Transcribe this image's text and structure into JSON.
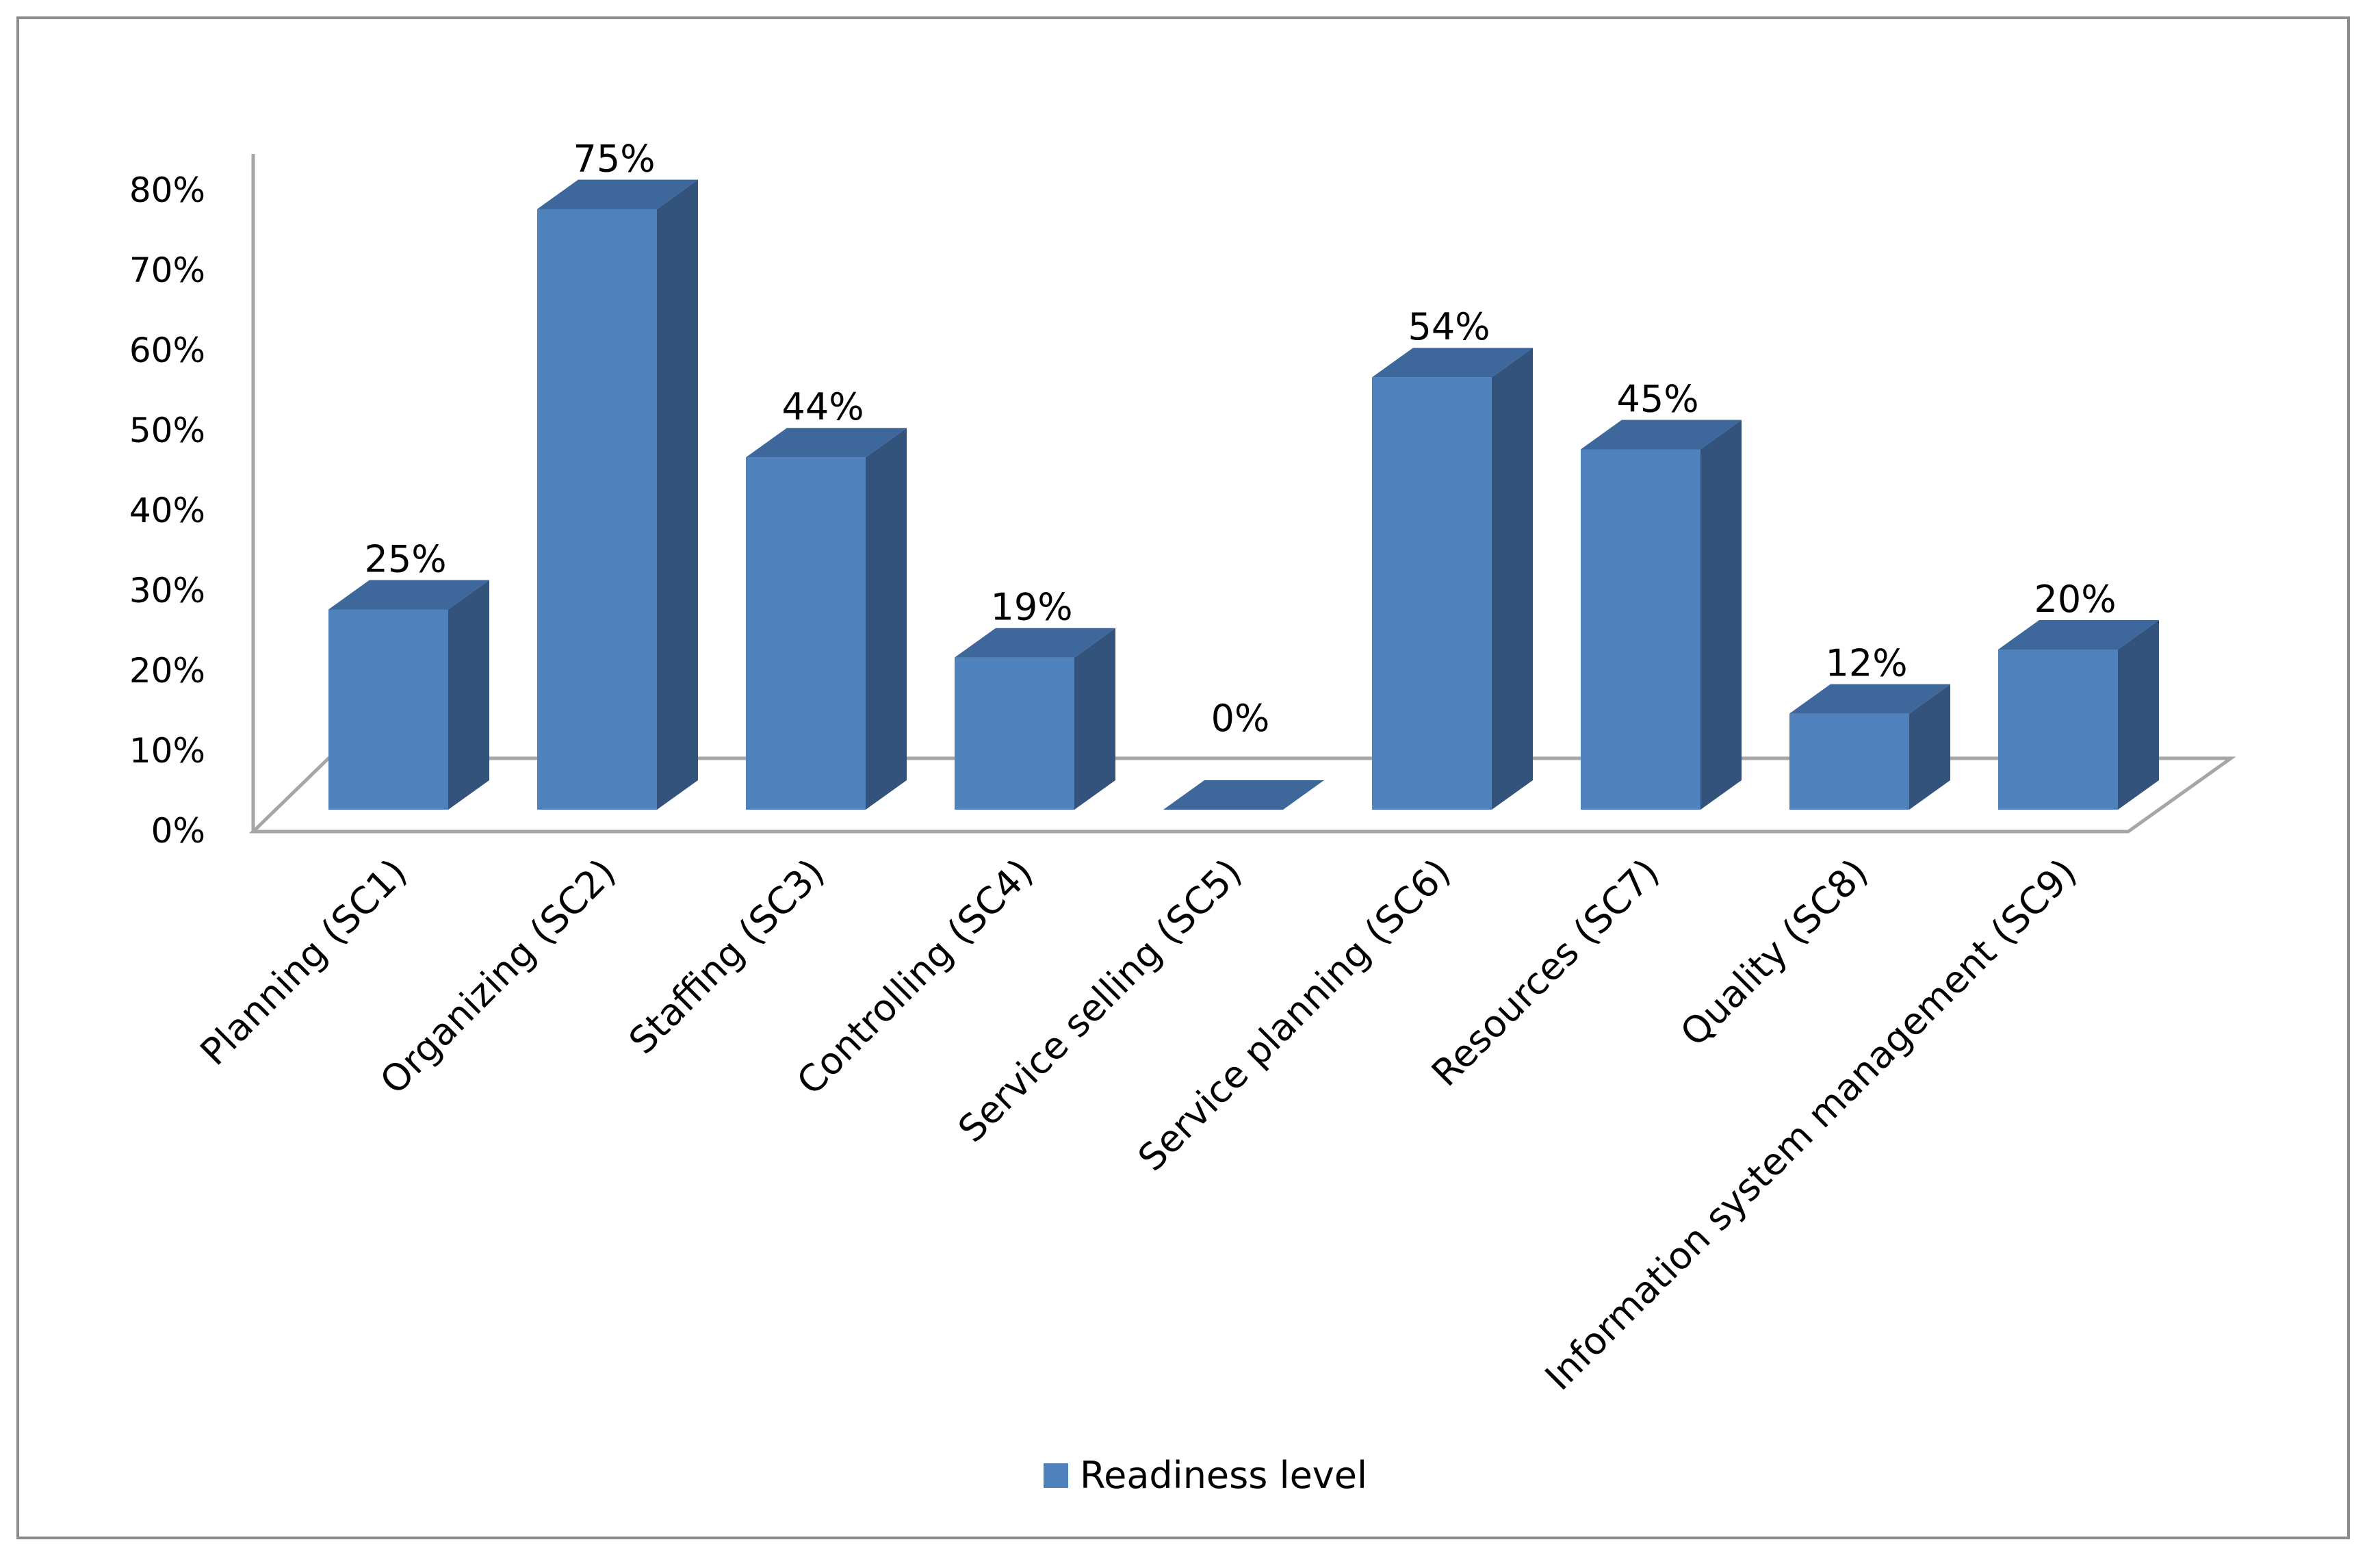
{
  "chart_data": {
    "type": "bar",
    "title": "",
    "xlabel": "",
    "ylabel": "",
    "ylim": [
      0,
      80
    ],
    "yticks": [
      "0%",
      "10%",
      "20%",
      "30%",
      "40%",
      "50%",
      "60%",
      "70%",
      "80%"
    ],
    "categories": [
      "Planning (SC1)",
      "Organizing (SC2)",
      "Staffing (SC3)",
      "Controlling (SC4)",
      "Service selling (SC5)",
      "Service planning (SC6)",
      "Resources (SC7)",
      "Quality (SC8)",
      "Information system management (SC9)"
    ],
    "series": [
      {
        "name": "Readiness level",
        "values": [
          25,
          75,
          44,
          19,
          0,
          54,
          45,
          12,
          20
        ],
        "data_labels": [
          "25%",
          "75%",
          "44%",
          "19%",
          "0%",
          "54%",
          "45%",
          "12%",
          "20%"
        ]
      }
    ],
    "grid": false,
    "legend_position": "bottom",
    "style_3d": true,
    "colors": {
      "bar_front": "#4f81bd",
      "bar_side": "#34537c",
      "bar_top": "#3e679b",
      "axis": "#a6a6a6",
      "frame": "#8c8c8c"
    }
  }
}
